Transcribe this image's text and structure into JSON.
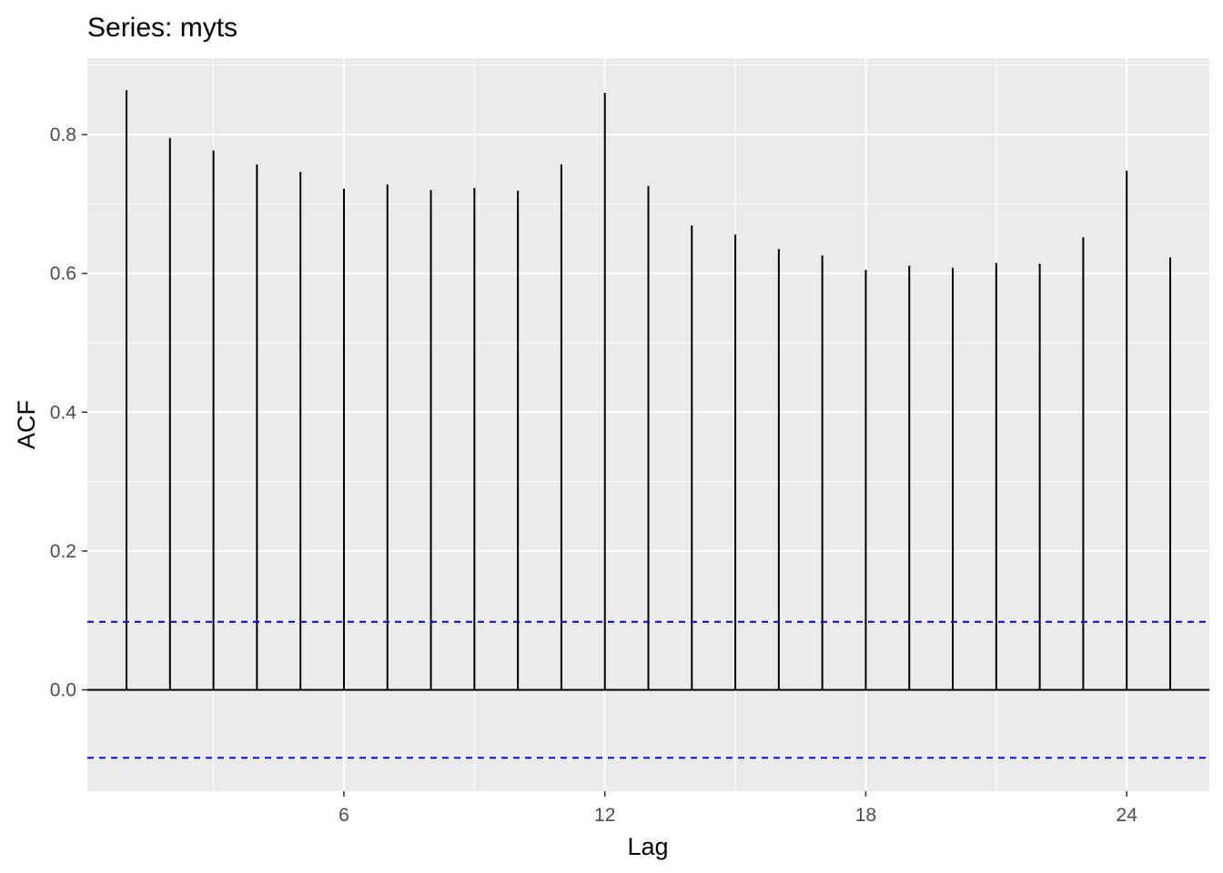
{
  "chart_data": {
    "type": "bar",
    "title": "Series: myts",
    "xlabel": "Lag",
    "ylabel": "ACF",
    "x": [
      1,
      2,
      3,
      4,
      5,
      6,
      7,
      8,
      9,
      10,
      11,
      12,
      13,
      14,
      15,
      16,
      17,
      18,
      19,
      20,
      21,
      22,
      23,
      24,
      25
    ],
    "values": [
      0.864,
      0.795,
      0.777,
      0.757,
      0.746,
      0.722,
      0.728,
      0.72,
      0.723,
      0.719,
      0.757,
      0.86,
      0.726,
      0.669,
      0.656,
      0.635,
      0.626,
      0.605,
      0.611,
      0.608,
      0.615,
      0.614,
      0.652,
      0.748,
      0.623
    ],
    "confidence_bounds": [
      0.098,
      -0.098
    ],
    "xlim": [
      0.1,
      25.9
    ],
    "ylim": [
      -0.146,
      0.91
    ],
    "xticks": [
      6,
      12,
      18,
      24
    ],
    "xtick_labels": [
      "6",
      "12",
      "18",
      "24"
    ],
    "yticks": [
      0.0,
      0.2,
      0.4,
      0.6,
      0.8
    ],
    "ytick_labels": [
      "0.0",
      "0.2",
      "0.4",
      "0.6",
      "0.8"
    ],
    "grid": true,
    "legend": "none",
    "colors": {
      "panel_background": "#ebebeb",
      "grid_line": "#ffffff",
      "bar": "#000000",
      "confidence_line": "#0000ff",
      "tick_label": "#4d4d4d"
    }
  }
}
